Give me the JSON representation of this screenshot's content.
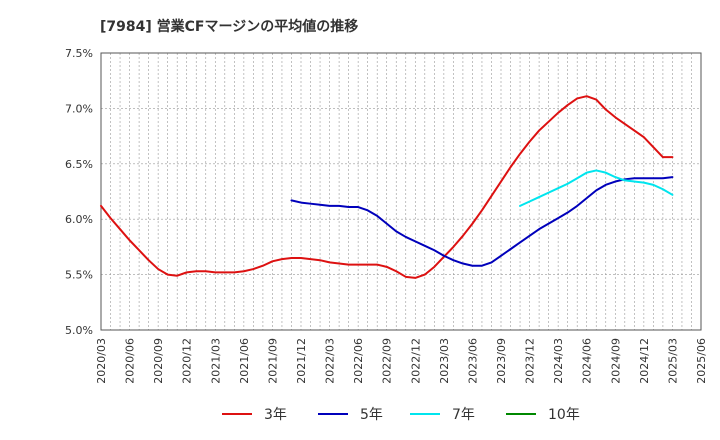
{
  "chart_data": {
    "type": "line",
    "title": "[7984]  営業CFマージンの平均値の推移",
    "xlabel": "",
    "ylabel": "",
    "ylim": [
      5.0,
      7.5
    ],
    "yticks": [
      "5.0%",
      "5.5%",
      "6.0%",
      "6.5%",
      "7.0%",
      "7.5%"
    ],
    "ytick_values": [
      5.0,
      5.5,
      6.0,
      6.5,
      7.0,
      7.5
    ],
    "xticks": [
      "2020/03",
      "2020/06",
      "2020/09",
      "2020/12",
      "2021/03",
      "2021/06",
      "2021/09",
      "2021/12",
      "2022/03",
      "2022/06",
      "2022/09",
      "2022/12",
      "2023/03",
      "2023/06",
      "2023/09",
      "2023/12",
      "2024/03",
      "2024/06",
      "2024/09",
      "2024/12",
      "2025/03",
      "2025/06"
    ],
    "grid": true,
    "legend_position": "bottom",
    "series": [
      {
        "name": "3年",
        "color": "#dd1111",
        "x": [
          "2020/03",
          "2020/04",
          "2020/05",
          "2020/06",
          "2020/07",
          "2020/08",
          "2020/09",
          "2020/10",
          "2020/11",
          "2020/12",
          "2021/01",
          "2021/02",
          "2021/03",
          "2021/04",
          "2021/05",
          "2021/06",
          "2021/07",
          "2021/08",
          "2021/09",
          "2021/10",
          "2021/11",
          "2021/12",
          "2022/01",
          "2022/02",
          "2022/03",
          "2022/04",
          "2022/05",
          "2022/06",
          "2022/07",
          "2022/08",
          "2022/09",
          "2022/10",
          "2022/11",
          "2022/12",
          "2023/01",
          "2023/02",
          "2023/03",
          "2023/04",
          "2023/05",
          "2023/06",
          "2023/07",
          "2023/08",
          "2023/09",
          "2023/10",
          "2023/11",
          "2023/12",
          "2024/01",
          "2024/02",
          "2024/03",
          "2024/04",
          "2024/05",
          "2024/06",
          "2024/07",
          "2024/08",
          "2024/09",
          "2024/10",
          "2024/11",
          "2024/12",
          "2025/01",
          "2025/02",
          "2025/03"
        ],
        "values": [
          6.12,
          6.01,
          5.91,
          5.81,
          5.72,
          5.63,
          5.55,
          5.5,
          5.49,
          5.52,
          5.53,
          5.53,
          5.52,
          5.52,
          5.52,
          5.53,
          5.55,
          5.58,
          5.62,
          5.64,
          5.65,
          5.65,
          5.64,
          5.63,
          5.61,
          5.6,
          5.59,
          5.59,
          5.59,
          5.59,
          5.57,
          5.53,
          5.48,
          5.47,
          5.5,
          5.57,
          5.66,
          5.75,
          5.85,
          5.96,
          6.08,
          6.21,
          6.34,
          6.47,
          6.59,
          6.7,
          6.8,
          6.88,
          6.96,
          7.03,
          7.09,
          7.11,
          7.08,
          6.99,
          6.92,
          6.86,
          6.8,
          6.74,
          6.65,
          6.56,
          6.56
        ]
      },
      {
        "name": "5年",
        "color": "#0000bb",
        "x": [
          "2021/11",
          "2021/12",
          "2022/01",
          "2022/02",
          "2022/03",
          "2022/04",
          "2022/05",
          "2022/06",
          "2022/07",
          "2022/08",
          "2022/09",
          "2022/10",
          "2022/11",
          "2022/12",
          "2023/01",
          "2023/02",
          "2023/03",
          "2023/04",
          "2023/05",
          "2023/06",
          "2023/07",
          "2023/08",
          "2023/09",
          "2023/10",
          "2023/11",
          "2023/12",
          "2024/01",
          "2024/02",
          "2024/03",
          "2024/04",
          "2024/05",
          "2024/06",
          "2024/07",
          "2024/08",
          "2024/09",
          "2024/10",
          "2024/11",
          "2024/12",
          "2025/01",
          "2025/02",
          "2025/03"
        ],
        "values": [
          6.17,
          6.15,
          6.14,
          6.13,
          6.12,
          6.12,
          6.11,
          6.11,
          6.08,
          6.03,
          5.96,
          5.89,
          5.84,
          5.8,
          5.76,
          5.72,
          5.67,
          5.63,
          5.6,
          5.58,
          5.58,
          5.61,
          5.67,
          5.73,
          5.79,
          5.85,
          5.91,
          5.96,
          6.01,
          6.06,
          6.12,
          6.19,
          6.26,
          6.31,
          6.34,
          6.36,
          6.37,
          6.37,
          6.37,
          6.37,
          6.38
        ]
      },
      {
        "name": "7年",
        "color": "#00e5ee",
        "x": [
          "2023/11",
          "2023/12",
          "2024/01",
          "2024/02",
          "2024/03",
          "2024/04",
          "2024/05",
          "2024/06",
          "2024/07",
          "2024/08",
          "2024/09",
          "2024/10",
          "2024/11",
          "2024/12",
          "2025/01",
          "2025/02",
          "2025/03"
        ],
        "values": [
          6.12,
          6.16,
          6.2,
          6.24,
          6.28,
          6.32,
          6.37,
          6.42,
          6.44,
          6.42,
          6.38,
          6.35,
          6.34,
          6.33,
          6.31,
          6.27,
          6.22
        ]
      },
      {
        "name": "10年",
        "color": "#008800",
        "x": [],
        "values": []
      }
    ]
  }
}
